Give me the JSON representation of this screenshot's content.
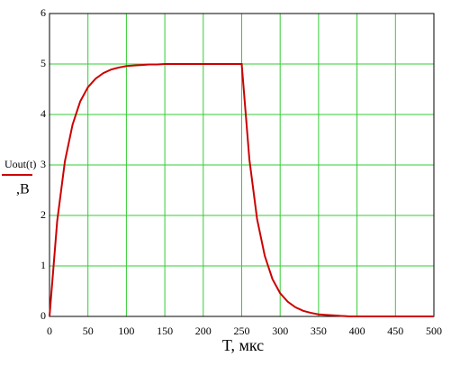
{
  "chart_data": {
    "type": "line",
    "xlabel": "T, мкс",
    "ylabel": ",B",
    "x": [
      0,
      10,
      20,
      30,
      40,
      50,
      60,
      70,
      80,
      90,
      100,
      110,
      120,
      130,
      140,
      150,
      200,
      250,
      260,
      270,
      280,
      290,
      300,
      310,
      320,
      330,
      340,
      350,
      360,
      370,
      380,
      390,
      400,
      450,
      500
    ],
    "series": [
      {
        "name": "Uout(t)",
        "color": "#cc0000",
        "values": [
          0,
          1.89,
          3.07,
          3.8,
          4.26,
          4.54,
          4.71,
          4.82,
          4.89,
          4.93,
          4.96,
          4.97,
          4.98,
          4.99,
          4.99,
          5,
          5,
          5,
          3.11,
          1.93,
          1.2,
          0.74,
          0.46,
          0.29,
          0.18,
          0.11,
          0.07,
          0.04,
          0.03,
          0.02,
          0.01,
          0,
          0,
          0,
          0
        ]
      }
    ],
    "xlim": [
      0,
      500
    ],
    "xticks": [
      0,
      50,
      100,
      150,
      200,
      250,
      300,
      350,
      400,
      450,
      500
    ],
    "ylim": [
      0,
      6
    ],
    "yticks": [
      0,
      1,
      2,
      3,
      4,
      5,
      6
    ],
    "grid": true,
    "grid_color": "#33cc33"
  }
}
